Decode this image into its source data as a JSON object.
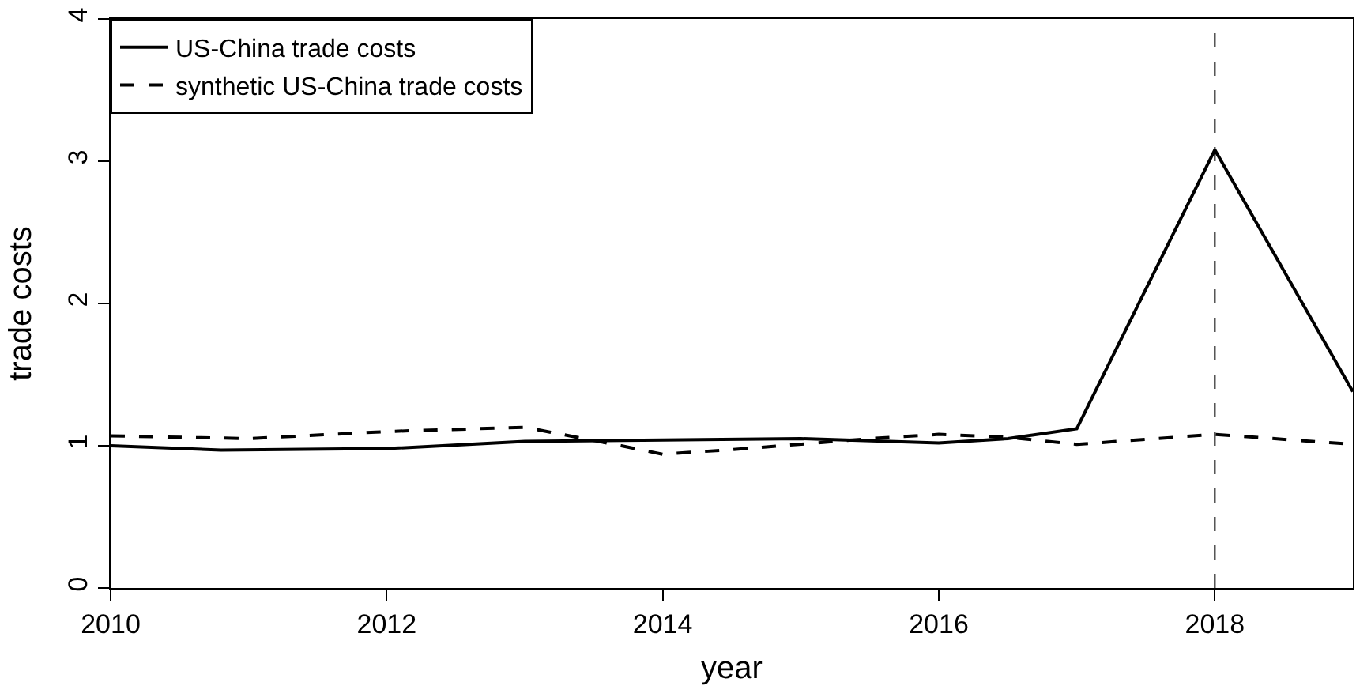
{
  "chart_data": {
    "type": "line",
    "xlabel": "year",
    "ylabel": "trade costs",
    "xlim": [
      2010,
      2019
    ],
    "xticks": [
      2010,
      2012,
      2014,
      2016,
      2018
    ],
    "ylim": [
      0,
      4
    ],
    "yticks": [
      0,
      1,
      2,
      3,
      4
    ],
    "grid": false,
    "legend": "top left",
    "marker": "none",
    "series": [
      {
        "name": "US-China trade costs",
        "color": "#000000",
        "line_style": "solid",
        "x": [
          2010,
          2010.8,
          2012,
          2013,
          2014,
          2015,
          2016,
          2016.5,
          2017,
          2018,
          2019
        ],
        "values": [
          1.0,
          0.97,
          0.98,
          1.03,
          1.04,
          1.05,
          1.02,
          1.05,
          1.12,
          3.08,
          1.38
        ]
      },
      {
        "name": "synthetic US-China trade costs",
        "color": "#000000",
        "line_style": "dashed",
        "x": [
          2010,
          2011,
          2012,
          2013,
          2013.7,
          2014,
          2014.6,
          2015.5,
          2016,
          2016.5,
          2017,
          2018,
          2019
        ],
        "values": [
          1.07,
          1.05,
          1.1,
          1.13,
          1.0,
          0.94,
          0.98,
          1.05,
          1.08,
          1.06,
          1.01,
          1.08,
          1.01
        ]
      }
    ],
    "ref_lines": [
      {
        "axis": "x",
        "value": 2018,
        "line_style": "dashed",
        "color": "#000000"
      }
    ]
  }
}
